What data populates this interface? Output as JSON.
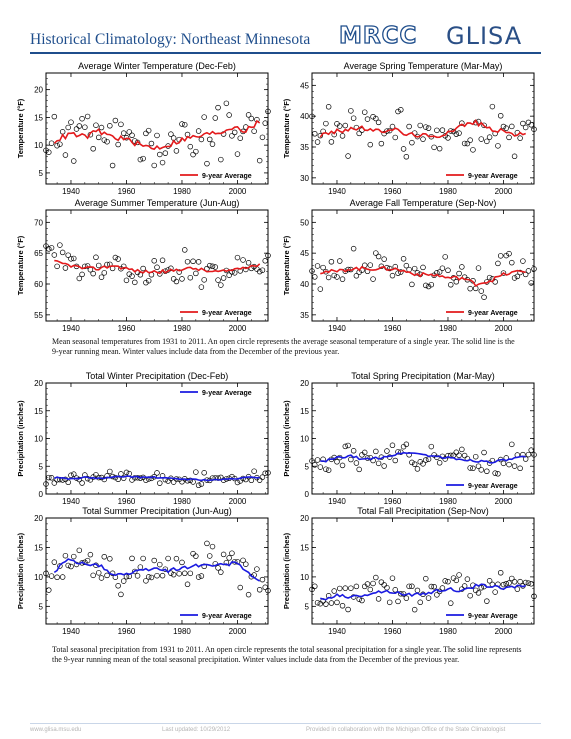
{
  "header": {
    "title": "Historical Climatology: Northeast Minnesota",
    "logo_mrcc": "MRCC",
    "logo_glisa": "GLISA"
  },
  "captions": {
    "temperature": "Mean seasonal temperatures from 1931 to 2011. An open circle represents the average seasonal temperature of a single year. The solid line is the 9-year running mean. Winter values include data from the December of the previous year.",
    "precipitation": "Total seasonal precipitation from 1931 to 2011. An open circle represents the total seasonal precipitation for a single year. The solid line represents the 9-year running mean of the total seasonal precipitation. Winter values include data from the December of the previous year."
  },
  "footer": {
    "website": "www.glisa.msu.edu",
    "updated": "Last updated: 10/29/2012",
    "credit": "Provided in collaboration with the Michigan Office of the State Climatologist"
  },
  "colors": {
    "temperature": "#e31a1c",
    "precipitation": "#1a1ae0"
  },
  "chart_data": [
    {
      "type": "scatter",
      "title": "Average Winter Temperature (Dec-Feb)",
      "ylabel": "Temperature (°F)",
      "xlim": [
        1931,
        2011
      ],
      "ylim": [
        3,
        23
      ],
      "yticks": [
        5,
        10,
        15,
        20
      ],
      "xticks": [
        1940,
        1960,
        1980,
        2000
      ],
      "legend": "9-year Average",
      "legend_position": "bottom-right",
      "seed": 11,
      "mean": [
        [
          1931,
          10
        ],
        [
          1935,
          11
        ],
        [
          1940,
          12
        ],
        [
          1945,
          11.5
        ],
        [
          1950,
          12.5
        ],
        [
          1955,
          11.5
        ],
        [
          1960,
          11
        ],
        [
          1965,
          10
        ],
        [
          1970,
          9.5
        ],
        [
          1975,
          10
        ],
        [
          1980,
          11
        ],
        [
          1985,
          11.5
        ],
        [
          1990,
          12
        ],
        [
          1995,
          12.5
        ],
        [
          1999,
          13.5
        ],
        [
          2003,
          12.5
        ],
        [
          2007,
          14
        ],
        [
          2011,
          13
        ]
      ],
      "spread": 4
    },
    {
      "type": "scatter",
      "title": "Average Spring Temperature (Mar-May)",
      "ylabel": "Temperature (°F)",
      "xlim": [
        1931,
        2011
      ],
      "ylim": [
        29,
        47
      ],
      "yticks": [
        30,
        35,
        40,
        45
      ],
      "xticks": [
        1940,
        1960,
        1980,
        2000
      ],
      "legend": "9-year Average",
      "legend_position": "bottom-right",
      "seed": 23,
      "mean": [
        [
          1931,
          36.5
        ],
        [
          1935,
          37
        ],
        [
          1940,
          37.5
        ],
        [
          1945,
          38
        ],
        [
          1950,
          38
        ],
        [
          1955,
          37.5
        ],
        [
          1960,
          38
        ],
        [
          1965,
          37
        ],
        [
          1970,
          37
        ],
        [
          1975,
          36.5
        ],
        [
          1980,
          37.5
        ],
        [
          1985,
          38.5
        ],
        [
          1990,
          39
        ],
        [
          1995,
          38
        ],
        [
          2000,
          37.5
        ],
        [
          2005,
          37
        ],
        [
          2011,
          37
        ]
      ],
      "spread": 3
    },
    {
      "type": "scatter",
      "title": "Average Summer Temperature (Jun-Aug)",
      "ylabel": "Temperature (°F)",
      "xlim": [
        1931,
        2011
      ],
      "ylim": [
        54,
        72
      ],
      "yticks": [
        55,
        60,
        65,
        70
      ],
      "xticks": [
        1940,
        1960,
        1980,
        2000
      ],
      "legend": "9-year Average",
      "legend_position": "bottom-right",
      "seed": 37,
      "mean": [
        [
          1931,
          64
        ],
        [
          1935,
          63.5
        ],
        [
          1940,
          63
        ],
        [
          1945,
          62.5
        ],
        [
          1950,
          62.5
        ],
        [
          1955,
          63
        ],
        [
          1960,
          62.5
        ],
        [
          1965,
          62
        ],
        [
          1970,
          62
        ],
        [
          1975,
          62
        ],
        [
          1980,
          62.5
        ],
        [
          1985,
          62.5
        ],
        [
          1990,
          62
        ],
        [
          1995,
          62
        ],
        [
          2000,
          62.5
        ],
        [
          2005,
          63
        ],
        [
          2011,
          63
        ]
      ],
      "spread": 2.2
    },
    {
      "type": "scatter",
      "title": "Average Fall Temperature (Sep-Nov)",
      "ylabel": "Temperature (°F)",
      "xlim": [
        1931,
        2011
      ],
      "ylim": [
        34,
        52
      ],
      "yticks": [
        35,
        40,
        45,
        50
      ],
      "xticks": [
        1940,
        1960,
        1980,
        2000
      ],
      "legend": "9-year Average",
      "legend_position": "bottom-right",
      "seed": 41,
      "mean": [
        [
          1931,
          41.5
        ],
        [
          1935,
          42
        ],
        [
          1940,
          42
        ],
        [
          1945,
          42.5
        ],
        [
          1950,
          42.5
        ],
        [
          1955,
          42.5
        ],
        [
          1960,
          42.5
        ],
        [
          1965,
          42
        ],
        [
          1970,
          41.5
        ],
        [
          1975,
          41.5
        ],
        [
          1980,
          41
        ],
        [
          1985,
          41
        ],
        [
          1990,
          40
        ],
        [
          1995,
          40.5
        ],
        [
          2000,
          41.5
        ],
        [
          2005,
          42
        ],
        [
          2011,
          42
        ]
      ],
      "spread": 2.5
    },
    {
      "type": "scatter",
      "title": "Total Winter Precipitation (Dec-Feb)",
      "ylabel": "Precipitation (inches)",
      "xlim": [
        1931,
        2011
      ],
      "ylim": [
        0,
        20
      ],
      "yticks": [
        0,
        5,
        10,
        15,
        20
      ],
      "xticks": [
        1940,
        1960,
        1980,
        2000
      ],
      "legend": "9-year Average",
      "legend_position": "top-right",
      "seed": 53,
      "mean": [
        [
          1931,
          2.5
        ],
        [
          1935,
          3
        ],
        [
          1940,
          2.7
        ],
        [
          1945,
          3
        ],
        [
          1950,
          2.8
        ],
        [
          1955,
          3
        ],
        [
          1960,
          3.2
        ],
        [
          1965,
          3
        ],
        [
          1970,
          3
        ],
        [
          1975,
          2.8
        ],
        [
          1980,
          2.7
        ],
        [
          1985,
          2.6
        ],
        [
          1990,
          2.5
        ],
        [
          1995,
          2.6
        ],
        [
          2000,
          2.8
        ],
        [
          2005,
          3
        ],
        [
          2011,
          3
        ]
      ],
      "spread": 0.9
    },
    {
      "type": "scatter",
      "title": "Total Spring Precipitation (Mar-May)",
      "ylabel": "Precipitation (inches)",
      "xlim": [
        1931,
        2011
      ],
      "ylim": [
        0,
        20
      ],
      "yticks": [
        0,
        5,
        10,
        15,
        20
      ],
      "xticks": [
        1940,
        1960,
        1980,
        2000
      ],
      "legend": "9-year Average",
      "legend_position": "bottom-right",
      "seed": 67,
      "mean": [
        [
          1931,
          5.5
        ],
        [
          1935,
          5.8
        ],
        [
          1940,
          6.5
        ],
        [
          1945,
          6.8
        ],
        [
          1950,
          6.2
        ],
        [
          1955,
          6.5
        ],
        [
          1960,
          7
        ],
        [
          1965,
          7.5
        ],
        [
          1970,
          7.2
        ],
        [
          1975,
          6.8
        ],
        [
          1980,
          6.5
        ],
        [
          1985,
          6.2
        ],
        [
          1990,
          6
        ],
        [
          1995,
          5.8
        ],
        [
          2000,
          6
        ],
        [
          2005,
          6.5
        ],
        [
          2011,
          6.8
        ]
      ],
      "spread": 1.8
    },
    {
      "type": "scatter",
      "title": "Total Summer Precipitation (Jun-Aug)",
      "ylabel": "Precipitation (inches)",
      "xlim": [
        1931,
        2011
      ],
      "ylim": [
        2,
        20
      ],
      "yticks": [
        5,
        10,
        15,
        20
      ],
      "xticks": [
        1940,
        1960,
        1980,
        2000
      ],
      "legend": "9-year Average",
      "legend_position": "bottom-right",
      "seed": 79,
      "mean": [
        [
          1931,
          9.5
        ],
        [
          1934,
          10.5
        ],
        [
          1937,
          12.5
        ],
        [
          1940,
          13
        ],
        [
          1945,
          12
        ],
        [
          1950,
          12
        ],
        [
          1955,
          10.5
        ],
        [
          1960,
          10.5
        ],
        [
          1965,
          11
        ],
        [
          1970,
          11.5
        ],
        [
          1975,
          11
        ],
        [
          1980,
          11.5
        ],
        [
          1985,
          12
        ],
        [
          1990,
          12
        ],
        [
          1995,
          12
        ],
        [
          2000,
          12.5
        ],
        [
          2005,
          10
        ],
        [
          2011,
          8.5
        ]
      ],
      "spread": 2.5
    },
    {
      "type": "scatter",
      "title": "Total Fall Precipitation (Sep-Nov)",
      "ylabel": "Precipitation (inches)",
      "xlim": [
        1931,
        2011
      ],
      "ylim": [
        2,
        20
      ],
      "yticks": [
        5,
        10,
        15,
        20
      ],
      "xticks": [
        1940,
        1960,
        1980,
        2000
      ],
      "legend": "9-year Average",
      "legend_position": "bottom-right",
      "seed": 91,
      "mean": [
        [
          1931,
          6.5
        ],
        [
          1935,
          6
        ],
        [
          1940,
          7
        ],
        [
          1945,
          6.5
        ],
        [
          1950,
          7
        ],
        [
          1955,
          7.5
        ],
        [
          1960,
          7.5
        ],
        [
          1965,
          7
        ],
        [
          1970,
          7
        ],
        [
          1975,
          7.5
        ],
        [
          1980,
          8
        ],
        [
          1985,
          7.5
        ],
        [
          1990,
          8.5
        ],
        [
          1995,
          8.5
        ],
        [
          2000,
          8
        ],
        [
          2005,
          8.5
        ],
        [
          2011,
          8.5
        ]
      ],
      "spread": 2.2
    }
  ]
}
